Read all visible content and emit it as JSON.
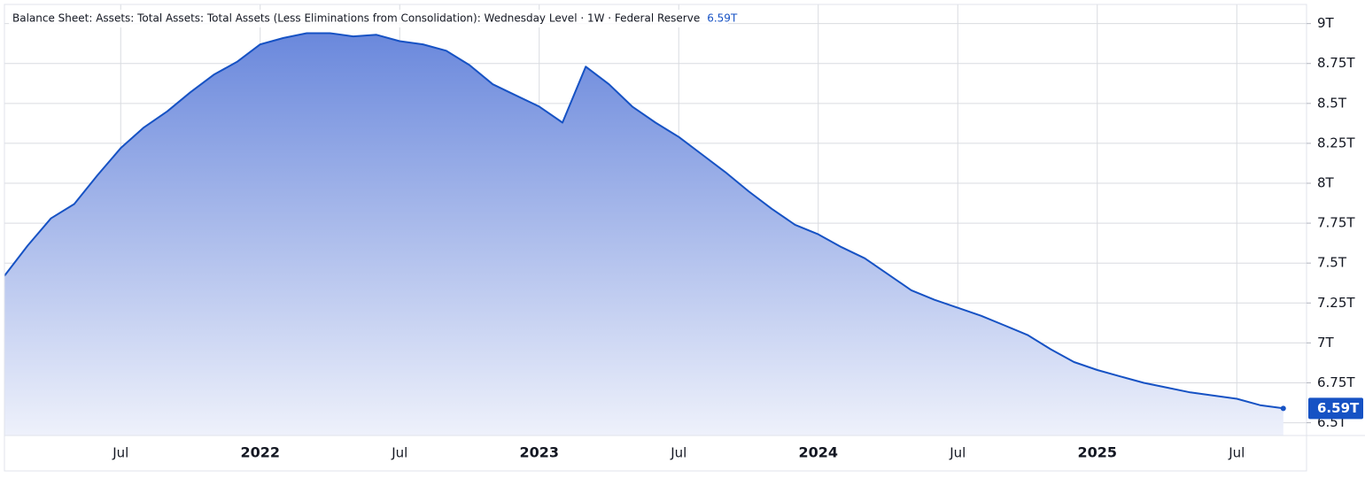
{
  "chart_data": {
    "type": "area",
    "title": "Balance Sheet: Assets: Total Assets: Total Assets (Less Eliminations from Consolidation): Wednesday Level · 1W · Federal Reserve",
    "last_label": "6.59T",
    "color": "#1652c4",
    "grid": true,
    "x": [
      "2021-02",
      "2021-03",
      "2021-04",
      "2021-05",
      "2021-06",
      "2021-07",
      "2021-08",
      "2021-09",
      "2021-10",
      "2021-11",
      "2021-12",
      "2022-01",
      "2022-02",
      "2022-03",
      "2022-04",
      "2022-05",
      "2022-06",
      "2022-07",
      "2022-08",
      "2022-09",
      "2022-10",
      "2022-11",
      "2022-12",
      "2023-01",
      "2023-02",
      "2023-03",
      "2023-04",
      "2023-05",
      "2023-06",
      "2023-07",
      "2023-08",
      "2023-09",
      "2023-10",
      "2023-11",
      "2023-12",
      "2024-01",
      "2024-02",
      "2024-03",
      "2024-04",
      "2024-05",
      "2024-06",
      "2024-07",
      "2024-08",
      "2024-09",
      "2024-10",
      "2024-11",
      "2024-12",
      "2025-01",
      "2025-02",
      "2025-03",
      "2025-04",
      "2025-05",
      "2025-06",
      "2025-07",
      "2025-08",
      "2025-09"
    ],
    "values": [
      7.42,
      7.61,
      7.78,
      7.87,
      8.05,
      8.22,
      8.35,
      8.45,
      8.57,
      8.68,
      8.76,
      8.87,
      8.91,
      8.94,
      8.94,
      8.92,
      8.93,
      8.89,
      8.87,
      8.83,
      8.74,
      8.62,
      8.55,
      8.48,
      8.38,
      8.73,
      8.62,
      8.48,
      8.38,
      8.29,
      8.18,
      8.07,
      7.95,
      7.84,
      7.74,
      7.68,
      7.6,
      7.53,
      7.43,
      7.33,
      7.27,
      7.22,
      7.17,
      7.11,
      7.05,
      6.96,
      6.88,
      6.83,
      6.79,
      6.75,
      6.72,
      6.69,
      6.67,
      6.65,
      6.61,
      6.59
    ],
    "xlim": [
      "2021-02",
      "2025-10"
    ],
    "xticks": [
      {
        "value": "2021-07",
        "label": "Jul"
      },
      {
        "value": "2022-01",
        "label": "2022"
      },
      {
        "value": "2022-07",
        "label": "Jul"
      },
      {
        "value": "2023-01",
        "label": "2023"
      },
      {
        "value": "2023-07",
        "label": "Jul"
      },
      {
        "value": "2024-01",
        "label": "2024"
      },
      {
        "value": "2024-07",
        "label": "Jul"
      },
      {
        "value": "2025-01",
        "label": "2025"
      },
      {
        "value": "2025-07",
        "label": "Jul"
      }
    ],
    "ylim": [
      6.42,
      9.12
    ],
    "yticks": [
      {
        "value": 6.5,
        "label": "6.5T"
      },
      {
        "value": 6.75,
        "label": "6.75T"
      },
      {
        "value": 7,
        "label": "7T"
      },
      {
        "value": 7.25,
        "label": "7.25T"
      },
      {
        "value": 7.5,
        "label": "7.5T"
      },
      {
        "value": 7.75,
        "label": "7.75T"
      },
      {
        "value": 8,
        "label": "8T"
      },
      {
        "value": 8.25,
        "label": "8.25T"
      },
      {
        "value": 8.5,
        "label": "8.5T"
      },
      {
        "value": 8.75,
        "label": "8.75T"
      },
      {
        "value": 9,
        "label": "9T"
      }
    ]
  }
}
